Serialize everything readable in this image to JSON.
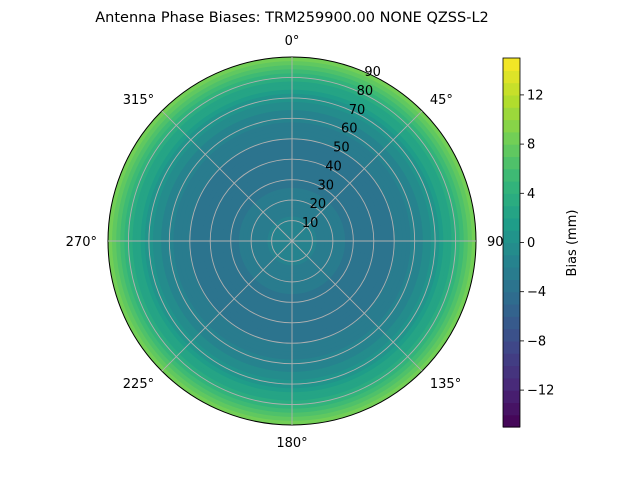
{
  "chart_data": {
    "type": "polar-contour",
    "title": "Antenna Phase Biases: TRM259900.00    NONE QZSS-L2",
    "angular_ticks": [
      "0°",
      "45°",
      "90°",
      "135°",
      "180°",
      "225°",
      "270°",
      "315°"
    ],
    "radial_ticks": [
      "10",
      "20",
      "30",
      "40",
      "50",
      "60",
      "70",
      "80",
      "90"
    ],
    "radial_range": [
      0,
      90
    ],
    "angular_zero": "top",
    "angular_direction": "clockwise",
    "grid": true,
    "colormap": "viridis",
    "colorbar": {
      "label": "Bias (mm)",
      "range": [
        -15,
        15
      ],
      "ticks": [
        "12",
        "8",
        "4",
        "0",
        "−4",
        "−8",
        "−12"
      ],
      "tick_values": [
        12,
        8,
        4,
        0,
        -4,
        -8,
        -12
      ],
      "levels": 30
    },
    "bias_vs_zenith": {
      "zenith": [
        0,
        10,
        20,
        30,
        40,
        50,
        60,
        70,
        80,
        90
      ],
      "bias_mm": [
        -1.5,
        -1.8,
        -2.6,
        -3.4,
        -3.6,
        -3.0,
        -1.8,
        0.5,
        4.0,
        9.0
      ]
    }
  }
}
